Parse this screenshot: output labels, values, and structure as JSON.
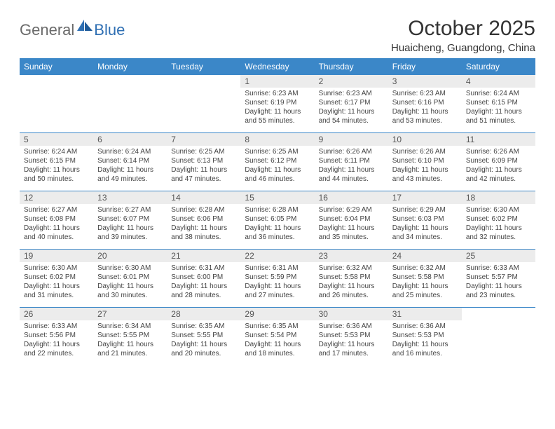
{
  "logo": {
    "general": "General",
    "blue": "Blue"
  },
  "title": "October 2025",
  "location": "Huaicheng, Guangdong, China",
  "colors": {
    "header_bg": "#3b87c8",
    "header_text": "#ffffff",
    "daynum_bg": "#ececec",
    "rule": "#3b87c8",
    "logo_gray": "#6a6a6a",
    "logo_blue": "#2f6fb3"
  },
  "day_headers": [
    "Sunday",
    "Monday",
    "Tuesday",
    "Wednesday",
    "Thursday",
    "Friday",
    "Saturday"
  ],
  "weeks": [
    {
      "nums": [
        "",
        "",
        "",
        "1",
        "2",
        "3",
        "4"
      ],
      "sunrise": [
        "",
        "",
        "",
        "6:23 AM",
        "6:23 AM",
        "6:23 AM",
        "6:24 AM"
      ],
      "sunset": [
        "",
        "",
        "",
        "6:19 PM",
        "6:17 PM",
        "6:16 PM",
        "6:15 PM"
      ],
      "day_h": [
        "",
        "",
        "",
        "11",
        "11",
        "11",
        "11"
      ],
      "day_m": [
        "",
        "",
        "",
        "55",
        "54",
        "53",
        "51"
      ]
    },
    {
      "nums": [
        "5",
        "6",
        "7",
        "8",
        "9",
        "10",
        "11"
      ],
      "sunrise": [
        "6:24 AM",
        "6:24 AM",
        "6:25 AM",
        "6:25 AM",
        "6:26 AM",
        "6:26 AM",
        "6:26 AM"
      ],
      "sunset": [
        "6:15 PM",
        "6:14 PM",
        "6:13 PM",
        "6:12 PM",
        "6:11 PM",
        "6:10 PM",
        "6:09 PM"
      ],
      "day_h": [
        "11",
        "11",
        "11",
        "11",
        "11",
        "11",
        "11"
      ],
      "day_m": [
        "50",
        "49",
        "47",
        "46",
        "44",
        "43",
        "42"
      ]
    },
    {
      "nums": [
        "12",
        "13",
        "14",
        "15",
        "16",
        "17",
        "18"
      ],
      "sunrise": [
        "6:27 AM",
        "6:27 AM",
        "6:28 AM",
        "6:28 AM",
        "6:29 AM",
        "6:29 AM",
        "6:30 AM"
      ],
      "sunset": [
        "6:08 PM",
        "6:07 PM",
        "6:06 PM",
        "6:05 PM",
        "6:04 PM",
        "6:03 PM",
        "6:02 PM"
      ],
      "day_h": [
        "11",
        "11",
        "11",
        "11",
        "11",
        "11",
        "11"
      ],
      "day_m": [
        "40",
        "39",
        "38",
        "36",
        "35",
        "34",
        "32"
      ]
    },
    {
      "nums": [
        "19",
        "20",
        "21",
        "22",
        "23",
        "24",
        "25"
      ],
      "sunrise": [
        "6:30 AM",
        "6:30 AM",
        "6:31 AM",
        "6:31 AM",
        "6:32 AM",
        "6:32 AM",
        "6:33 AM"
      ],
      "sunset": [
        "6:02 PM",
        "6:01 PM",
        "6:00 PM",
        "5:59 PM",
        "5:58 PM",
        "5:58 PM",
        "5:57 PM"
      ],
      "day_h": [
        "11",
        "11",
        "11",
        "11",
        "11",
        "11",
        "11"
      ],
      "day_m": [
        "31",
        "30",
        "28",
        "27",
        "26",
        "25",
        "23"
      ]
    },
    {
      "nums": [
        "26",
        "27",
        "28",
        "29",
        "30",
        "31",
        ""
      ],
      "sunrise": [
        "6:33 AM",
        "6:34 AM",
        "6:35 AM",
        "6:35 AM",
        "6:36 AM",
        "6:36 AM",
        ""
      ],
      "sunset": [
        "5:56 PM",
        "5:55 PM",
        "5:55 PM",
        "5:54 PM",
        "5:53 PM",
        "5:53 PM",
        ""
      ],
      "day_h": [
        "11",
        "11",
        "11",
        "11",
        "11",
        "11",
        ""
      ],
      "day_m": [
        "22",
        "21",
        "20",
        "18",
        "17",
        "16",
        ""
      ]
    }
  ]
}
